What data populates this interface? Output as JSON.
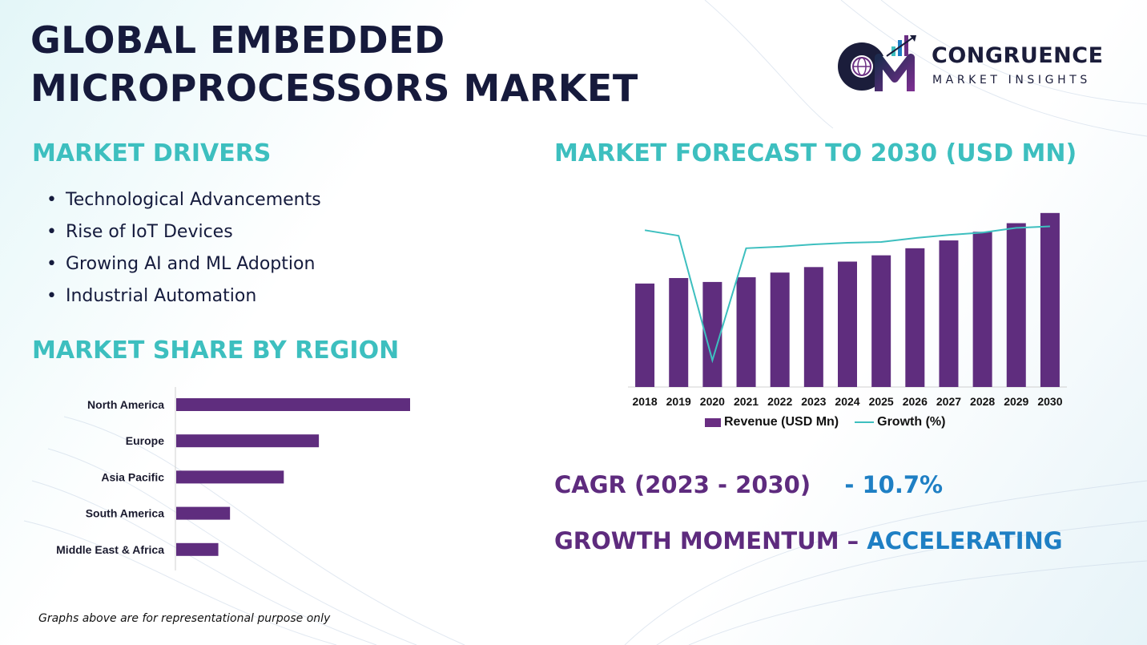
{
  "title": [
    "GLOBAL EMBEDDED",
    "MICROPROCESSORS MARKET"
  ],
  "logo": {
    "name": "CONGRUENCE",
    "tagline": "MARKET INSIGHTS",
    "monogram": "CM"
  },
  "drivers": {
    "heading": "MARKET DRIVERS",
    "items": [
      "Technological Advancements",
      "Rise of IoT Devices",
      "Growing AI and ML Adoption",
      "Industrial Automation"
    ]
  },
  "region": {
    "heading": "MARKET SHARE BY REGION"
  },
  "forecast": {
    "heading": "MARKET FORECAST TO 2030 (USD MN)"
  },
  "cagr": {
    "label": "CAGR (2023 - 2030)",
    "value": "- 10.7%"
  },
  "momentum": {
    "label": "GROWTH MOMENTUM –",
    "value": "ACCELERATING"
  },
  "footnote": "Graphs above are for representational purpose only",
  "colors": {
    "heading": "#3dbfbf",
    "bar": "#5f2d7e",
    "line": "#3dbfbf",
    "title": "#161a3c",
    "accent_blue": "#1e7fc4"
  },
  "chart_data": [
    {
      "type": "bar",
      "orientation": "horizontal",
      "categories": [
        "North America",
        "Europe",
        "Asia Pacific",
        "South America",
        "Middle East & Africa"
      ],
      "values": [
        100,
        61,
        46,
        23,
        18
      ],
      "title": "",
      "xlabel": "",
      "ylabel": "",
      "grid": false,
      "legend": "none"
    },
    {
      "type": "bar",
      "categories": [
        "2018",
        "2019",
        "2020",
        "2021",
        "2022",
        "2023",
        "2024",
        "2025",
        "2026",
        "2027",
        "2028",
        "2029",
        "2030"
      ],
      "series": [
        {
          "name": "Revenue (USD Mn)",
          "type": "bar",
          "values": [
            132,
            139,
            134,
            140,
            146,
            153,
            160,
            168,
            177,
            187,
            198,
            209,
            222
          ]
        },
        {
          "name": "Growth (%)",
          "type": "line",
          "values": [
            200,
            193,
            34,
            177,
            179,
            182,
            184,
            185,
            190,
            194,
            197,
            203,
            205
          ]
        }
      ],
      "title": "",
      "xlabel": "",
      "ylabel": "",
      "ylim": [
        0,
        230
      ],
      "grid": false,
      "legend": "bottom-center"
    }
  ]
}
